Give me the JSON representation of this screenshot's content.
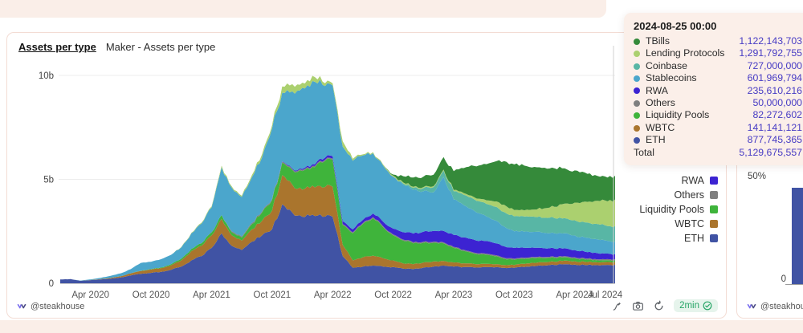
{
  "page": {
    "strip_color": "#faeee8",
    "accent_border": "#f3dcd4"
  },
  "left_panel": {
    "title": "Assets per type",
    "subtitle": "Maker - Assets per type",
    "footer_author": "@steakhouse",
    "refresh_badge": "2min",
    "action_icons": [
      "query-pen-icon",
      "camera-screenshot-icon",
      "refresh-icon"
    ]
  },
  "tooltip": {
    "date": "2024-08-25 00:00",
    "rows": [
      {
        "label": "TBills",
        "value": "1,122,143,703"
      },
      {
        "label": "Lending Protocols",
        "value": "1,291,792,755"
      },
      {
        "label": "Coinbase",
        "value": "727,000,000"
      },
      {
        "label": "Stablecoins",
        "value": "601,969,794"
      },
      {
        "label": "RWA",
        "value": "235,610,216"
      },
      {
        "label": "Others",
        "value": "50,000,000"
      },
      {
        "label": "Liquidity Pools",
        "value": "82,272,602"
      },
      {
        "label": "WBTC",
        "value": "141,141,121"
      },
      {
        "label": "ETH",
        "value": "877,745,365"
      }
    ],
    "total_label": "Total",
    "total_value": "5,129,675,557",
    "value_color": "#473bc4"
  },
  "legend_visible": [
    "RWA",
    "Others",
    "Liquidity Pools",
    "WBTC",
    "ETH"
  ],
  "chart_data": {
    "type": "area",
    "stacked": true,
    "title": "Maker - Assets per type",
    "unit": "USD, billions",
    "x_start": "2020-01",
    "x_end": "2024-08",
    "points_per_series": 56,
    "ylim": [
      0,
      10
    ],
    "grid": true,
    "legend_position": "right",
    "yticks": [
      {
        "label": "10b",
        "value": 10
      },
      {
        "label": "5b",
        "value": 5
      },
      {
        "label": "0",
        "value": 0
      }
    ],
    "xticks": [
      {
        "label": "Apr 2020",
        "month_index": 3
      },
      {
        "label": "Oct 2020",
        "month_index": 9
      },
      {
        "label": "Apr 2021",
        "month_index": 15
      },
      {
        "label": "Oct 2021",
        "month_index": 21
      },
      {
        "label": "Apr 2022",
        "month_index": 27
      },
      {
        "label": "Oct 2022",
        "month_index": 33
      },
      {
        "label": "Apr 2023",
        "month_index": 39
      },
      {
        "label": "Oct 2023",
        "month_index": 45
      },
      {
        "label": "Apr 2024",
        "month_index": 51
      },
      {
        "label": "Jul 2024",
        "month_index": 54
      }
    ],
    "hover_crosshair_x": "2024-08-25",
    "stack_order_bottom_to_top": [
      "ETH",
      "WBTC",
      "Liquidity Pools",
      "Others",
      "RWA",
      "Stablecoins",
      "Coinbase",
      "Lending Protocols",
      "TBills"
    ],
    "series": [
      {
        "name": "ETH",
        "color": "#4053a4",
        "values": [
          0.18,
          0.2,
          0.12,
          0.15,
          0.18,
          0.22,
          0.28,
          0.38,
          0.45,
          0.5,
          0.55,
          0.65,
          0.8,
          1.1,
          1.3,
          1.7,
          2.4,
          1.8,
          1.6,
          2.0,
          2.3,
          2.6,
          3.8,
          3.4,
          3.2,
          3.3,
          3.2,
          3.2,
          1.3,
          0.75,
          0.8,
          0.85,
          0.8,
          0.78,
          0.7,
          0.68,
          0.75,
          0.8,
          0.85,
          0.8,
          0.78,
          0.76,
          0.78,
          0.76,
          0.74,
          0.74,
          0.78,
          0.82,
          0.85,
          0.88,
          0.92,
          0.9,
          0.88,
          0.88,
          0.88,
          0.88
        ]
      },
      {
        "name": "WBTC",
        "color": "#aa752d",
        "values": [
          0,
          0,
          0,
          0.01,
          0.02,
          0.04,
          0.06,
          0.1,
          0.14,
          0.16,
          0.18,
          0.22,
          0.3,
          0.45,
          0.5,
          0.6,
          0.7,
          0.5,
          0.45,
          0.6,
          0.7,
          0.9,
          1.4,
          1.35,
          1.3,
          1.4,
          1.4,
          1.45,
          0.55,
          0.35,
          0.45,
          0.48,
          0.4,
          0.32,
          0.25,
          0.24,
          0.25,
          0.25,
          0.22,
          0.2,
          0.18,
          0.17,
          0.16,
          0.15,
          0.14,
          0.14,
          0.15,
          0.16,
          0.16,
          0.16,
          0.17,
          0.16,
          0.15,
          0.14,
          0.14,
          0.14
        ]
      },
      {
        "name": "Liquidity Pools",
        "color": "#3fb43b",
        "values": [
          0,
          0,
          0,
          0,
          0,
          0,
          0,
          0,
          0.01,
          0.02,
          0.03,
          0.05,
          0.08,
          0.1,
          0.12,
          0.15,
          0.18,
          0.15,
          0.15,
          0.25,
          0.4,
          0.5,
          0.6,
          0.7,
          0.9,
          0.9,
          1.2,
          1.3,
          0.95,
          1.3,
          1.6,
          1.8,
          1.5,
          1.2,
          1.1,
          1.0,
          0.95,
          0.9,
          0.85,
          0.7,
          0.6,
          0.5,
          0.45,
          0.4,
          0.3,
          0.25,
          0.24,
          0.23,
          0.2,
          0.18,
          0.16,
          0.14,
          0.12,
          0.1,
          0.09,
          0.08
        ]
      },
      {
        "name": "Others",
        "color": "#7f7f7f",
        "values": [
          0,
          0,
          0,
          0,
          0,
          0,
          0,
          0,
          0,
          0,
          0,
          0,
          0,
          0,
          0,
          0,
          0,
          0.05,
          0.05,
          0.05,
          0.05,
          0.05,
          0.05,
          0.05,
          0.05,
          0.05,
          0.05,
          0.05,
          0.05,
          0.05,
          0.05,
          0.05,
          0.05,
          0.05,
          0.05,
          0.05,
          0.05,
          0.05,
          0.05,
          0.05,
          0.05,
          0.05,
          0.05,
          0.05,
          0.05,
          0.05,
          0.05,
          0.05,
          0.05,
          0.05,
          0.05,
          0.05,
          0.05,
          0.05,
          0.05,
          0.05
        ]
      },
      {
        "name": "RWA",
        "color": "#3c23d2",
        "values": [
          0,
          0,
          0,
          0,
          0,
          0,
          0,
          0,
          0,
          0,
          0,
          0,
          0,
          0,
          0,
          0,
          0,
          0,
          0,
          0,
          0,
          0,
          0.02,
          0.03,
          0.05,
          0.08,
          0.1,
          0.12,
          0.13,
          0.14,
          0.15,
          0.18,
          0.22,
          0.28,
          0.35,
          0.42,
          0.48,
          0.52,
          0.55,
          0.58,
          0.6,
          0.62,
          0.6,
          0.58,
          0.55,
          0.52,
          0.48,
          0.45,
          0.42,
          0.4,
          0.38,
          0.35,
          0.32,
          0.3,
          0.27,
          0.24
        ]
      },
      {
        "name": "Stablecoins",
        "color": "#4ba6cc",
        "values": [
          0,
          0,
          0.01,
          0.03,
          0.06,
          0.1,
          0.14,
          0.2,
          0.38,
          0.35,
          0.4,
          0.45,
          0.55,
          0.75,
          0.95,
          1.2,
          2.3,
          2.1,
          1.9,
          2.2,
          2.6,
          3.4,
          3.3,
          3.7,
          3.9,
          4.0,
          3.6,
          3.4,
          3.6,
          3.3,
          3.1,
          2.9,
          2.7,
          2.5,
          2.3,
          2.1,
          1.95,
          1.85,
          2.6,
          1.7,
          1.55,
          1.4,
          1.25,
          1.1,
          0.95,
          0.8,
          0.78,
          0.76,
          0.75,
          0.73,
          0.72,
          0.7,
          0.68,
          0.66,
          0.63,
          0.6
        ]
      },
      {
        "name": "Coinbase",
        "color": "#58b6a5",
        "values": [
          0,
          0,
          0,
          0,
          0,
          0,
          0,
          0,
          0,
          0,
          0,
          0,
          0,
          0,
          0,
          0,
          0,
          0,
          0,
          0,
          0,
          0,
          0,
          0,
          0,
          0,
          0,
          0,
          0,
          0,
          0,
          0,
          0,
          0,
          0.05,
          0.1,
          0.15,
          0.25,
          0.3,
          0.4,
          0.5,
          0.55,
          0.6,
          0.65,
          0.7,
          0.72,
          0.73,
          0.73,
          0.73,
          0.73,
          0.73,
          0.73,
          0.73,
          0.73,
          0.73,
          0.73
        ]
      },
      {
        "name": "Lending Protocols",
        "color": "#abd06f",
        "values": [
          0,
          0,
          0,
          0,
          0,
          0,
          0,
          0,
          0,
          0,
          0,
          0,
          0.02,
          0.03,
          0.04,
          0.05,
          0.08,
          0.06,
          0.06,
          0.1,
          0.15,
          0.15,
          0.3,
          0.35,
          0.25,
          0.25,
          0.15,
          0.1,
          0.25,
          0.1,
          0.05,
          0.05,
          0.05,
          0.05,
          0.05,
          0.05,
          0.05,
          0.05,
          0.05,
          0.06,
          0.08,
          0.1,
          0.15,
          0.25,
          0.35,
          0.3,
          0.3,
          0.35,
          0.45,
          0.55,
          0.7,
          0.85,
          1.0,
          1.1,
          1.2,
          1.29
        ]
      },
      {
        "name": "TBills",
        "color": "#358a3a",
        "values": [
          0,
          0,
          0,
          0,
          0,
          0,
          0,
          0,
          0,
          0,
          0,
          0,
          0,
          0,
          0,
          0,
          0,
          0,
          0,
          0,
          0,
          0,
          0,
          0,
          0,
          0,
          0,
          0,
          0,
          0,
          0,
          0,
          0,
          0.05,
          0.3,
          0.45,
          0.5,
          0.55,
          0.6,
          0.9,
          1.2,
          1.5,
          1.7,
          1.9,
          2.1,
          2.2,
          2.15,
          2.05,
          1.95,
          1.85,
          1.7,
          1.55,
          1.4,
          1.25,
          1.15,
          1.12
        ]
      }
    ]
  },
  "right_panel": {
    "footer_author": "@steakhouse",
    "chart_data": {
      "type": "bar",
      "note": "partially visible panel",
      "yticks": [
        "50%",
        "0"
      ],
      "visible_bar_percent": 45,
      "bar_color": "#4053a4"
    }
  }
}
